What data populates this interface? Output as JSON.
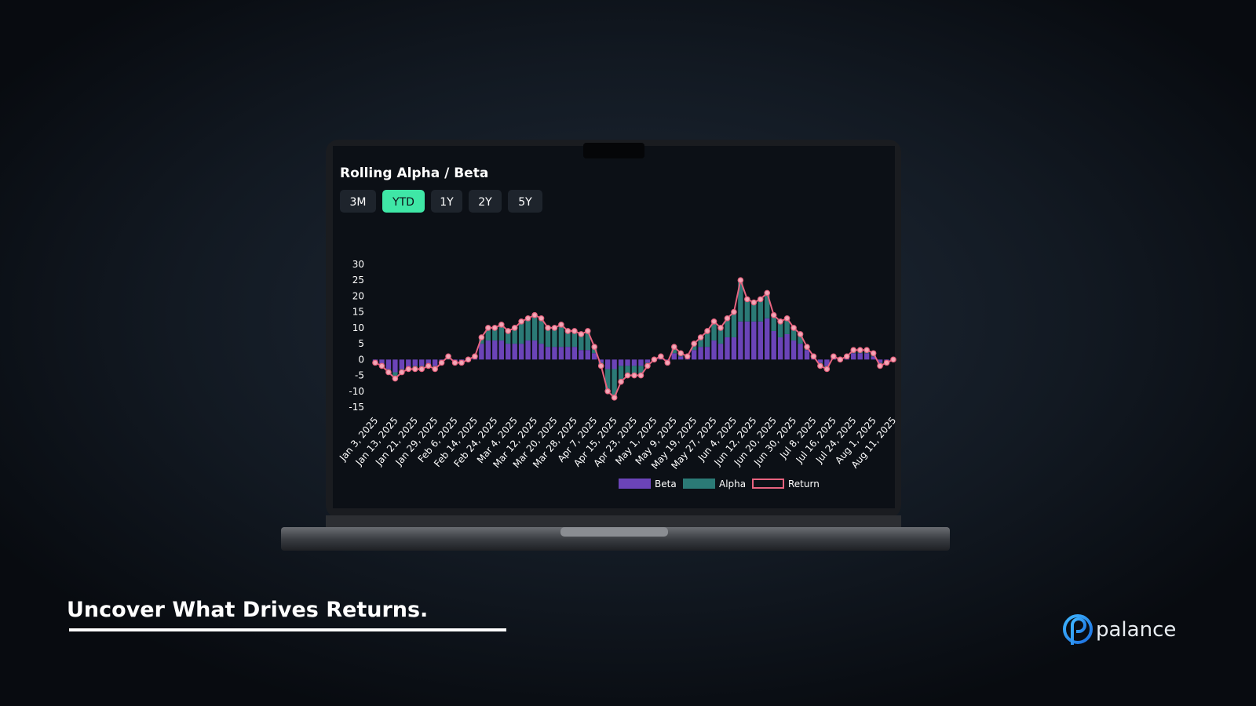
{
  "screen": {
    "title": "Rolling Alpha / Beta",
    "buttons": [
      "3M",
      "YTD",
      "1Y",
      "2Y",
      "5Y"
    ],
    "active_button": 1
  },
  "chart_data": {
    "type": "stacked-bar-line",
    "categories": [
      "Jan 3, 2025",
      null,
      null,
      "Jan 13, 2025",
      null,
      null,
      "Jan 21, 2025",
      null,
      null,
      "Jan 29, 2025",
      null,
      null,
      "Feb 6, 2025",
      null,
      null,
      "Feb 14, 2025",
      null,
      null,
      "Feb 24, 2025",
      null,
      null,
      "Mar 4, 2025",
      null,
      null,
      "Mar 12, 2025",
      null,
      null,
      "Mar 20, 2025",
      null,
      null,
      "Mar 28, 2025",
      null,
      null,
      "Apr 7, 2025",
      null,
      null,
      "Apr 15, 2025",
      null,
      null,
      "Apr 23, 2025",
      null,
      null,
      "May 1, 2025",
      null,
      null,
      "May 9, 2025",
      null,
      null,
      "May 19, 2025",
      null,
      null,
      "May 27, 2025",
      null,
      null,
      "Jun 4, 2025",
      null,
      null,
      "Jun 12, 2025",
      null,
      null,
      "Jun 20, 2025",
      null,
      null,
      "Jun 30, 2025",
      null,
      null,
      "Jul 8, 2025",
      null,
      null,
      "Jul 16, 2025",
      null,
      null,
      "Jul 24, 2025",
      null,
      null,
      "Aug 1, 2025",
      null,
      null,
      "Aug 11, 2025"
    ],
    "series": [
      {
        "name": "Beta",
        "kind": "bar",
        "color": "#6b44b8",
        "values": [
          -1,
          -2,
          -3,
          -4,
          -3,
          -3,
          -2,
          -2,
          -2,
          -2,
          -1,
          0,
          -1,
          -1,
          0,
          1,
          5,
          6,
          6,
          6,
          5,
          5,
          5,
          6,
          6,
          5,
          4,
          4,
          4,
          4,
          4,
          3,
          3,
          2,
          -1,
          -3,
          -3,
          -2,
          -2,
          -2,
          -2,
          -1,
          0,
          1,
          -1,
          2,
          1,
          1,
          3,
          4,
          4,
          6,
          5,
          7,
          7,
          12,
          12,
          12,
          12,
          13,
          9,
          7,
          8,
          6,
          5,
          3,
          1,
          -1,
          -2,
          1,
          0,
          1,
          2,
          2,
          2,
          1,
          -1,
          -1,
          0
        ]
      },
      {
        "name": "Alpha",
        "kind": "bar",
        "color": "#2b7a76",
        "values": [
          0,
          0,
          -1,
          -2,
          -1,
          0,
          -1,
          -1,
          0,
          -1,
          0,
          1,
          0,
          0,
          0,
          0,
          2,
          4,
          4,
          5,
          4,
          5,
          7,
          7,
          8,
          8,
          6,
          6,
          7,
          5,
          5,
          5,
          6,
          2,
          -1,
          -7,
          -9,
          -5,
          -3,
          -3,
          -3,
          -1,
          0,
          0,
          0,
          2,
          1,
          0,
          2,
          3,
          5,
          6,
          5,
          6,
          8,
          13,
          7,
          6,
          7,
          8,
          5,
          5,
          5,
          4,
          3,
          1,
          0,
          -1,
          -1,
          0,
          0,
          0,
          1,
          1,
          1,
          1,
          -1,
          0,
          0
        ]
      },
      {
        "name": "Return",
        "kind": "line",
        "color": "#e8637f",
        "values": [
          -1,
          -2,
          -4,
          -6,
          -4,
          -3,
          -3,
          -3,
          -2,
          -3,
          -1,
          1,
          -1,
          -1,
          0,
          1,
          7,
          10,
          10,
          11,
          9,
          10,
          12,
          13,
          14,
          13,
          10,
          10,
          11,
          9,
          9,
          8,
          9,
          4,
          -2,
          -10,
          -12,
          -7,
          -5,
          -5,
          -5,
          -2,
          0,
          1,
          -1,
          4,
          2,
          1,
          5,
          7,
          9,
          12,
          10,
          13,
          15,
          25,
          19,
          18,
          19,
          21,
          14,
          12,
          13,
          10,
          8,
          4,
          1,
          -2,
          -3,
          1,
          0,
          1,
          3,
          3,
          3,
          2,
          -2,
          -1,
          0
        ]
      }
    ],
    "ylim": [
      -15,
      30
    ],
    "yticks": [
      30,
      25,
      20,
      15,
      10,
      5,
      0,
      -5,
      -10,
      -15
    ],
    "grid": false,
    "legend": "bottom"
  },
  "tagline": "Uncover What Drives Returns.",
  "brand": "palance"
}
